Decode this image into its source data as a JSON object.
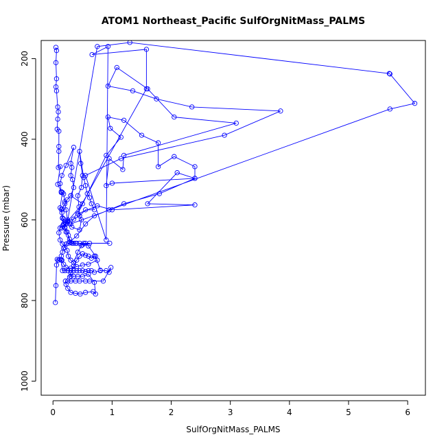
{
  "chart_data": {
    "type": "scatter",
    "title": "ATOM1 Northeast_Pacific SulfOrgNitMass_PALMS",
    "xlabel": "SulfOrgNitMass_PALMS",
    "ylabel": "Pressure (mbar)",
    "xlim": [
      -0.2,
      6.3
    ],
    "ylim": [
      1035,
      155
    ],
    "y_reversed": true,
    "x_ticks": [
      0,
      1,
      2,
      3,
      4,
      5,
      6
    ],
    "y_ticks": [
      200,
      400,
      600,
      800,
      1000
    ],
    "x_tick_labels": [
      "0",
      "1",
      "2",
      "3",
      "4",
      "5",
      "6"
    ],
    "y_tick_labels": [
      "200",
      "400",
      "600",
      "800",
      "1000"
    ],
    "grid": false,
    "legend": "none",
    "series": [
      {
        "color": "#0000ff",
        "marker": "open-circle",
        "line": true,
        "points": [
          [
            0.04,
            805
          ],
          [
            0.05,
            763
          ],
          [
            0.06,
            712
          ],
          [
            0.07,
            698
          ],
          [
            0.09,
            700
          ],
          [
            0.12,
            698
          ],
          [
            0.14,
            700
          ],
          [
            0.16,
            726
          ],
          [
            0.2,
            726
          ],
          [
            0.25,
            726
          ],
          [
            0.3,
            726
          ],
          [
            0.35,
            726
          ],
          [
            0.4,
            726
          ],
          [
            0.45,
            726
          ],
          [
            0.5,
            726
          ],
          [
            0.55,
            728
          ],
          [
            0.6,
            726
          ],
          [
            0.65,
            726
          ],
          [
            0.7,
            730
          ],
          [
            0.8,
            726
          ],
          [
            0.9,
            726
          ],
          [
            0.95,
            730
          ],
          [
            0.98,
            718
          ],
          [
            0.85,
            752
          ],
          [
            0.62,
            752
          ],
          [
            0.55,
            752
          ],
          [
            0.45,
            752
          ],
          [
            0.38,
            752
          ],
          [
            0.3,
            752
          ],
          [
            0.25,
            752
          ],
          [
            0.21,
            752
          ],
          [
            0.22,
            760
          ],
          [
            0.25,
            770
          ],
          [
            0.3,
            780
          ],
          [
            0.38,
            782
          ],
          [
            0.46,
            784
          ],
          [
            0.55,
            780
          ],
          [
            0.68,
            778
          ],
          [
            0.72,
            784
          ],
          [
            0.7,
            755
          ],
          [
            0.6,
            735
          ],
          [
            0.5,
            740
          ],
          [
            0.42,
            740
          ],
          [
            0.35,
            740
          ],
          [
            0.3,
            740
          ],
          [
            0.28,
            742
          ],
          [
            0.3,
            731
          ],
          [
            0.35,
            714
          ],
          [
            0.4,
            700
          ],
          [
            0.45,
            690
          ],
          [
            0.5,
            684
          ],
          [
            0.55,
            688
          ],
          [
            0.6,
            690
          ],
          [
            0.65,
            695
          ],
          [
            0.7,
            690
          ],
          [
            0.75,
            700
          ],
          [
            0.6,
            710
          ],
          [
            0.5,
            712
          ],
          [
            0.4,
            716
          ],
          [
            0.3,
            720
          ],
          [
            0.22,
            718
          ],
          [
            0.18,
            710
          ],
          [
            0.15,
            700
          ],
          [
            0.14,
            690
          ],
          [
            0.16,
            680
          ],
          [
            0.18,
            670
          ],
          [
            0.22,
            660
          ],
          [
            0.26,
            658
          ],
          [
            0.3,
            656
          ],
          [
            0.35,
            658
          ],
          [
            0.4,
            658
          ],
          [
            0.45,
            658
          ],
          [
            0.5,
            662
          ],
          [
            0.62,
            658
          ],
          [
            0.96,
            658
          ],
          [
            0.55,
            658
          ],
          [
            0.38,
            658
          ],
          [
            0.32,
            658
          ],
          [
            0.28,
            648
          ],
          [
            0.26,
            638
          ],
          [
            0.22,
            630
          ],
          [
            0.2,
            618
          ],
          [
            0.18,
            610
          ],
          [
            0.16,
            596
          ],
          [
            0.15,
            582
          ],
          [
            0.16,
            573
          ],
          [
            0.2,
            560
          ],
          [
            0.24,
            550
          ],
          [
            0.3,
            540
          ],
          [
            0.35,
            520
          ],
          [
            0.33,
            500
          ],
          [
            0.3,
            490
          ],
          [
            0.32,
            470
          ],
          [
            0.3,
            460
          ],
          [
            0.35,
            420
          ],
          [
            0.22,
            465
          ],
          [
            0.15,
            490
          ],
          [
            0.12,
            510
          ],
          [
            0.14,
            532
          ],
          [
            0.18,
            536
          ],
          [
            0.2,
            555
          ],
          [
            0.22,
            575
          ],
          [
            0.25,
            605
          ],
          [
            0.28,
            610
          ],
          [
            0.32,
            618
          ],
          [
            0.45,
            625
          ],
          [
            0.48,
            600
          ],
          [
            0.45,
            590
          ],
          [
            0.44,
            568
          ],
          [
            0.42,
            540
          ],
          [
            0.48,
            520
          ],
          [
            0.5,
            490
          ],
          [
            0.47,
            460
          ],
          [
            0.45,
            430
          ],
          [
            0.52,
            495
          ],
          [
            0.55,
            515
          ],
          [
            0.58,
            535
          ],
          [
            0.62,
            545
          ],
          [
            0.65,
            560
          ],
          [
            0.7,
            575
          ],
          [
            0.55,
            575
          ],
          [
            0.45,
            590
          ],
          [
            0.35,
            598
          ],
          [
            0.25,
            603
          ],
          [
            0.22,
            610
          ],
          [
            0.19,
            612
          ],
          [
            0.16,
            615
          ],
          [
            0.12,
            620
          ],
          [
            0.1,
            632
          ],
          [
            0.12,
            650
          ],
          [
            0.16,
            660
          ],
          [
            0.2,
            668
          ],
          [
            0.24,
            676
          ],
          [
            0.26,
            690
          ],
          [
            0.3,
            700
          ],
          [
            0.35,
            706
          ],
          [
            0.42,
            680
          ],
          [
            0.48,
            664
          ],
          [
            0.52,
            658
          ],
          [
            0.6,
            665
          ],
          [
            0.72,
            690
          ],
          [
            0.8,
            725
          ]
        ]
      },
      {
        "color": "#0000ff",
        "marker": "open-circle",
        "line": true,
        "points": [
          [
            0.05,
            172
          ],
          [
            0.06,
            180
          ],
          [
            0.05,
            210
          ],
          [
            0.06,
            250
          ],
          [
            0.05,
            270
          ],
          [
            0.06,
            280
          ],
          [
            0.08,
            320
          ],
          [
            0.09,
            332
          ],
          [
            0.08,
            350
          ],
          [
            0.07,
            375
          ],
          [
            0.1,
            380
          ],
          [
            0.1,
            418
          ],
          [
            0.1,
            430
          ],
          [
            0.09,
            470
          ],
          [
            0.12,
            468
          ],
          [
            0.08,
            512
          ],
          [
            0.14,
            530
          ],
          [
            0.16,
            532
          ],
          [
            0.12,
            570
          ],
          [
            0.14,
            574
          ],
          [
            0.16,
            595
          ],
          [
            0.18,
            598
          ],
          [
            0.2,
            605
          ],
          [
            0.22,
            610
          ],
          [
            0.2,
            620
          ],
          [
            0.24,
            630
          ],
          [
            0.28,
            655
          ],
          [
            0.4,
            640
          ],
          [
            0.55,
            610
          ],
          [
            0.7,
            590
          ],
          [
            0.95,
            575
          ],
          [
            1.2,
            560
          ],
          [
            1.8,
            535
          ],
          [
            2.4,
            497
          ],
          [
            2.1,
            483
          ],
          [
            1.6,
            560
          ],
          [
            2.4,
            563
          ],
          [
            1.0,
            575
          ],
          [
            0.75,
            565
          ],
          [
            0.42,
            585
          ],
          [
            0.9,
            440
          ],
          [
            1.15,
            395
          ],
          [
            0.97,
            373
          ],
          [
            0.93,
            345
          ],
          [
            1.2,
            353
          ],
          [
            1.5,
            390
          ],
          [
            1.78,
            409
          ],
          [
            1.78,
            468
          ],
          [
            2.05,
            443
          ],
          [
            2.4,
            468
          ],
          [
            2.4,
            497
          ],
          [
            1.0,
            509
          ],
          [
            0.9,
            515
          ],
          [
            0.95,
            448
          ],
          [
            1.18,
            475
          ],
          [
            1.2,
            440
          ],
          [
            3.1,
            360
          ],
          [
            2.05,
            345
          ],
          [
            1.6,
            275
          ],
          [
            1.08,
            222
          ],
          [
            0.93,
            268
          ],
          [
            1.35,
            280
          ],
          [
            1.75,
            300
          ],
          [
            2.35,
            320
          ],
          [
            3.85,
            330
          ],
          [
            2.9,
            390
          ],
          [
            1.15,
            448
          ],
          [
            0.55,
            490
          ],
          [
            0.9,
            650
          ],
          [
            0.93,
            170
          ],
          [
            0.66,
            190
          ],
          [
            1.58,
            177
          ],
          [
            1.58,
            275
          ],
          [
            0.3,
            610
          ],
          [
            5.7,
            325
          ],
          [
            6.12,
            311
          ],
          [
            5.7,
            238
          ],
          [
            5.69,
            237
          ],
          [
            1.3,
            160
          ],
          [
            0.75,
            170
          ],
          [
            0.25,
            600
          ],
          [
            0.15,
            620
          ],
          [
            0.5,
            560
          ],
          [
            0.3,
            540
          ]
        ]
      }
    ]
  }
}
